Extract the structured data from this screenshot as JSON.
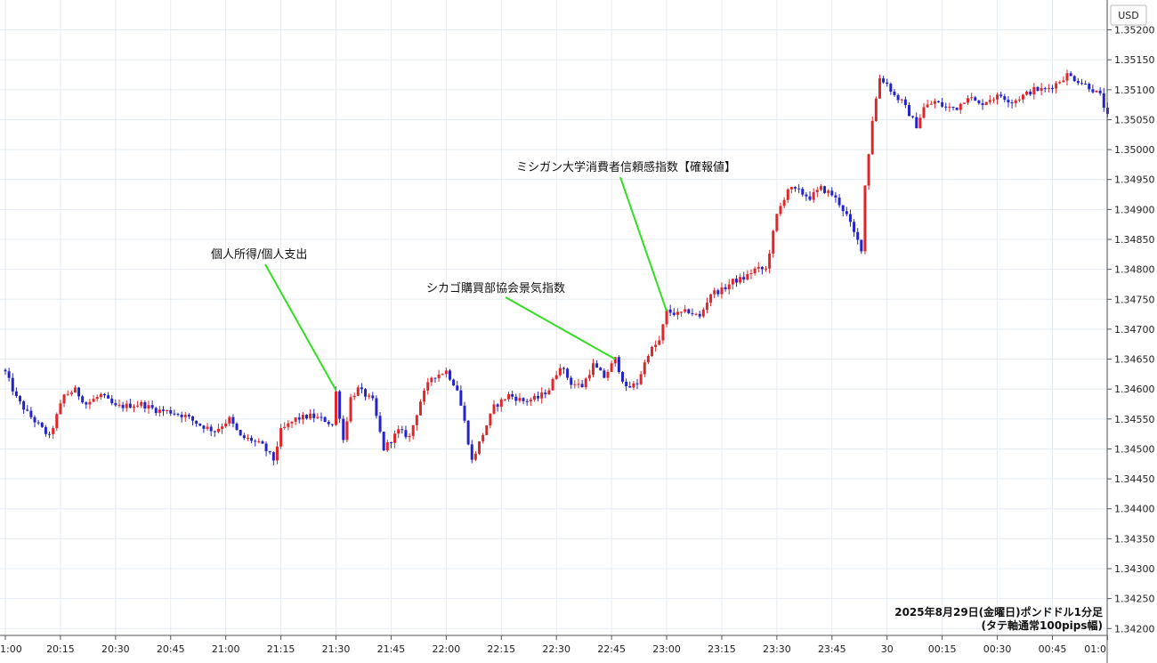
{
  "chart_data": {
    "type": "candlestick",
    "unit_label": "USD",
    "caption_line1": "2025年8月29日(金曜日)ポンドドル1分足",
    "caption_line2": "(タテ軸通常100pips幅)",
    "ylim": [
      1.3419,
      1.35235
    ],
    "y_ticks": [
      "1.35200",
      "1.35150",
      "1.35100",
      "1.35050",
      "1.35000",
      "1.34950",
      "1.34900",
      "1.34850",
      "1.34800",
      "1.34750",
      "1.34700",
      "1.34650",
      "1.34600",
      "1.34550",
      "1.34500",
      "1.34450",
      "1.34400",
      "1.34350",
      "1.34300",
      "1.34250",
      "1.34200"
    ],
    "x_start": "20:00",
    "x_end": "01:00",
    "x_ticks": [
      {
        "t": 0,
        "label": "1:00"
      },
      {
        "t": 15,
        "label": "20:15"
      },
      {
        "t": 30,
        "label": "20:30"
      },
      {
        "t": 45,
        "label": "20:45"
      },
      {
        "t": 60,
        "label": "21:00"
      },
      {
        "t": 75,
        "label": "21:15"
      },
      {
        "t": 90,
        "label": "21:30"
      },
      {
        "t": 105,
        "label": "21:45"
      },
      {
        "t": 120,
        "label": "22:00"
      },
      {
        "t": 135,
        "label": "22:15"
      },
      {
        "t": 150,
        "label": "22:30"
      },
      {
        "t": 165,
        "label": "22:45"
      },
      {
        "t": 180,
        "label": "23:00"
      },
      {
        "t": 195,
        "label": "23:15"
      },
      {
        "t": 210,
        "label": "23:30"
      },
      {
        "t": 225,
        "label": "23:45"
      },
      {
        "t": 240,
        "label": "30"
      },
      {
        "t": 255,
        "label": "00:15"
      },
      {
        "t": 270,
        "label": "00:30"
      },
      {
        "t": 285,
        "label": "00:45"
      },
      {
        "t": 300,
        "label": "01:0"
      }
    ],
    "up_color": "#e0262a",
    "down_color": "#2323c8",
    "close_anchors": [
      [
        0,
        1.34628
      ],
      [
        3,
        1.34585
      ],
      [
        6,
        1.3456
      ],
      [
        9,
        1.3454
      ],
      [
        12,
        1.3452
      ],
      [
        16,
        1.3459
      ],
      [
        19,
        1.34598
      ],
      [
        22,
        1.34575
      ],
      [
        26,
        1.3459
      ],
      [
        30,
        1.3457
      ],
      [
        33,
        1.34572
      ],
      [
        37,
        1.34575
      ],
      [
        41,
        1.34565
      ],
      [
        45,
        1.34562
      ],
      [
        49,
        1.34555
      ],
      [
        53,
        1.3454
      ],
      [
        57,
        1.3453
      ],
      [
        61,
        1.3455
      ],
      [
        64,
        1.3452
      ],
      [
        67,
        1.34515
      ],
      [
        70,
        1.34505
      ],
      [
        73,
        1.34482
      ],
      [
        75,
        1.3453
      ],
      [
        79,
        1.3455
      ],
      [
        83,
        1.34555
      ],
      [
        87,
        1.34548
      ],
      [
        89,
        1.3454
      ],
      [
        90,
        1.34595
      ],
      [
        92,
        1.34515
      ],
      [
        94,
        1.34585
      ],
      [
        96,
        1.346
      ],
      [
        100,
        1.3458
      ],
      [
        103,
        1.345
      ],
      [
        107,
        1.3453
      ],
      [
        110,
        1.3452
      ],
      [
        113,
        1.3458
      ],
      [
        116,
        1.3462
      ],
      [
        120,
        1.3463
      ],
      [
        123,
        1.346
      ],
      [
        125,
        1.34545
      ],
      [
        127,
        1.3448
      ],
      [
        130,
        1.34525
      ],
      [
        133,
        1.3457
      ],
      [
        137,
        1.3459
      ],
      [
        141,
        1.3458
      ],
      [
        145,
        1.34585
      ],
      [
        148,
        1.346
      ],
      [
        151,
        1.3464
      ],
      [
        154,
        1.3461
      ],
      [
        157,
        1.34605
      ],
      [
        160,
        1.3464
      ],
      [
        163,
        1.3462
      ],
      [
        166,
        1.3465
      ],
      [
        169,
        1.346
      ],
      [
        172,
        1.3461
      ],
      [
        175,
        1.3466
      ],
      [
        178,
        1.3468
      ],
      [
        180,
        1.3473
      ],
      [
        183,
        1.34725
      ],
      [
        186,
        1.3473
      ],
      [
        189,
        1.3472
      ],
      [
        192,
        1.3476
      ],
      [
        195,
        1.34765
      ],
      [
        198,
        1.3478
      ],
      [
        201,
        1.34785
      ],
      [
        204,
        1.348
      ],
      [
        207,
        1.348
      ],
      [
        210,
        1.3489
      ],
      [
        213,
        1.34935
      ],
      [
        216,
        1.3493
      ],
      [
        219,
        1.3492
      ],
      [
        222,
        1.34935
      ],
      [
        225,
        1.34925
      ],
      [
        227,
        1.3491
      ],
      [
        229,
        1.3489
      ],
      [
        231,
        1.3486
      ],
      [
        233,
        1.34835
      ],
      [
        234,
        1.3494
      ],
      [
        236,
        1.3505
      ],
      [
        238,
        1.3512
      ],
      [
        240,
        1.3511
      ],
      [
        242,
        1.3509
      ],
      [
        244,
        1.3508
      ],
      [
        246,
        1.3506
      ],
      [
        248,
        1.3504
      ],
      [
        250,
        1.3507
      ],
      [
        253,
        1.3508
      ],
      [
        256,
        1.3507
      ],
      [
        259,
        1.3507
      ],
      [
        262,
        1.3509
      ],
      [
        265,
        1.35075
      ],
      [
        268,
        1.35085
      ],
      [
        271,
        1.3509
      ],
      [
        274,
        1.3508
      ],
      [
        277,
        1.3509
      ],
      [
        280,
        1.351
      ],
      [
        283,
        1.351
      ],
      [
        286,
        1.3511
      ],
      [
        289,
        1.35125
      ],
      [
        292,
        1.35115
      ],
      [
        295,
        1.35105
      ],
      [
        298,
        1.3509
      ],
      [
        300,
        1.35055
      ]
    ],
    "annotations": [
      {
        "text": "個人所得/個人支出",
        "t": 90,
        "price": 1.34598
      },
      {
        "text": "シカゴ購買部協会景気指数",
        "t": 166,
        "price": 1.3465
      },
      {
        "text": "ミシガン大学消費者信頼感指数【確報値】",
        "t": 180,
        "price": 1.3473
      }
    ]
  }
}
